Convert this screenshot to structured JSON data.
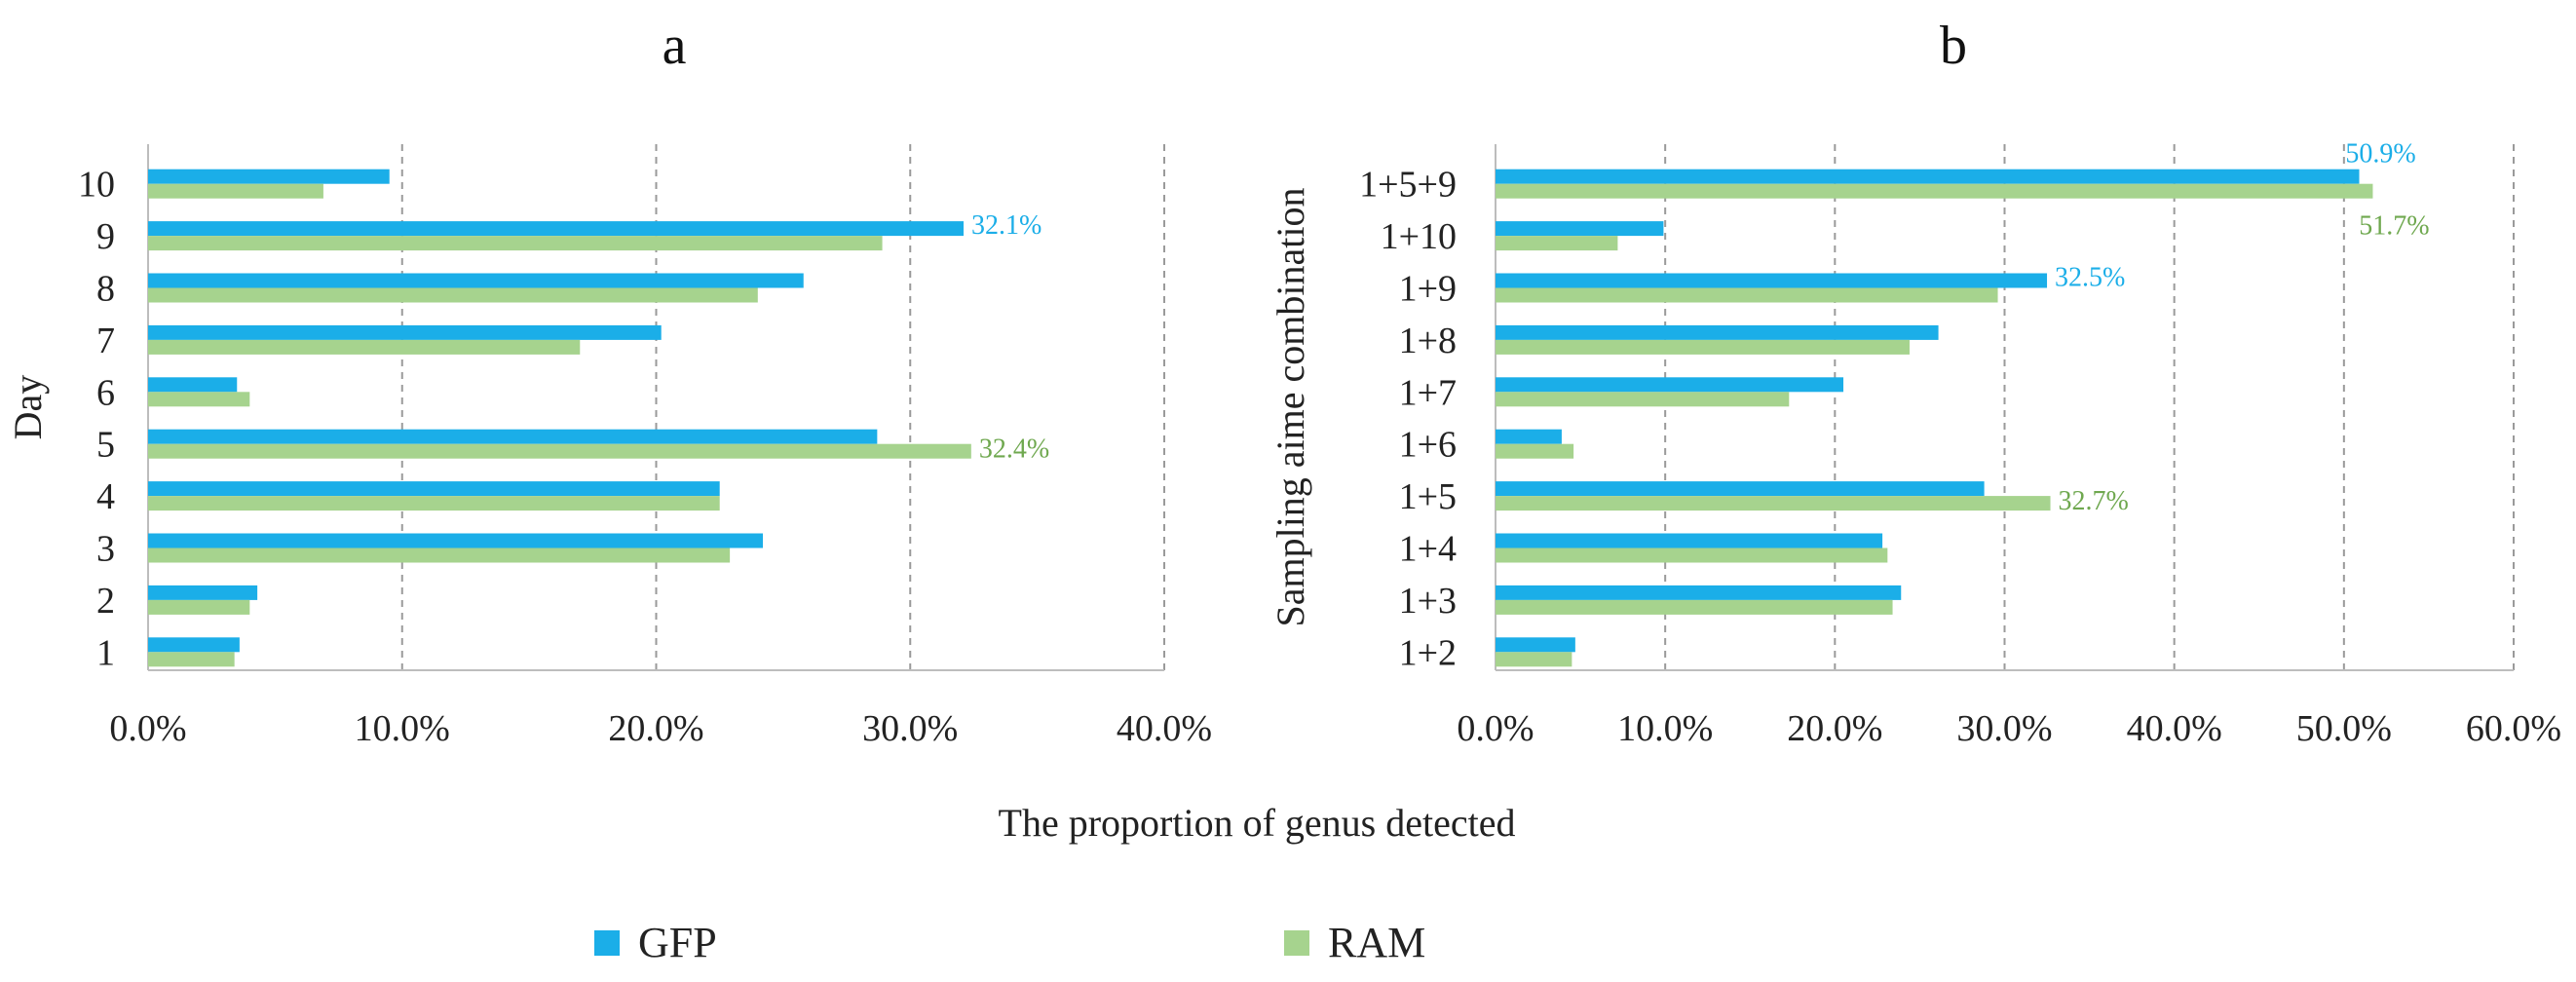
{
  "xlabel": "The proportion of genus detected",
  "colors": {
    "GFP": "#1BAEE8",
    "RAM": "#A6D38E",
    "grid": "#9a9a9a",
    "axis": "#bdbdbd"
  },
  "legend": {
    "items": [
      "GFP",
      "RAM"
    ]
  },
  "chart_data": [
    {
      "type": "bar",
      "orientation": "horizontal",
      "title": "a",
      "ylabel": "Day",
      "xlabel": "The proportion of genus detected",
      "xlim": [
        0,
        40
      ],
      "xticks": [
        "0.0%",
        "10.0%",
        "20.0%",
        "30.0%",
        "40.0%"
      ],
      "categories": [
        "1",
        "2",
        "3",
        "4",
        "5",
        "6",
        "7",
        "8",
        "9",
        "10"
      ],
      "series": [
        {
          "name": "GFP",
          "values": [
            3.6,
            4.3,
            24.2,
            22.5,
            28.7,
            3.5,
            20.2,
            25.8,
            32.1,
            9.5
          ]
        },
        {
          "name": "RAM",
          "values": [
            3.4,
            4.0,
            22.9,
            22.5,
            32.4,
            4.0,
            17.0,
            24.0,
            28.9,
            6.9
          ]
        }
      ],
      "annotations": [
        {
          "series": "GFP",
          "category": "9",
          "text": "32.1%"
        },
        {
          "series": "RAM",
          "category": "5",
          "text": "32.4%"
        }
      ]
    },
    {
      "type": "bar",
      "orientation": "horizontal",
      "title": "b",
      "ylabel": "Sampling aime combination",
      "xlabel": "The proportion of genus detected",
      "xlim": [
        0,
        60
      ],
      "xticks": [
        "0.0%",
        "10.0%",
        "20.0%",
        "30.0%",
        "40.0%",
        "50.0%",
        "60.0%"
      ],
      "categories": [
        "1+2",
        "1+3",
        "1+4",
        "1+5",
        "1+6",
        "1+7",
        "1+8",
        "1+9",
        "1+10",
        "1+5+9"
      ],
      "series": [
        {
          "name": "GFP",
          "values": [
            4.7,
            23.9,
            22.8,
            28.8,
            3.9,
            20.5,
            26.1,
            32.5,
            9.9,
            50.9
          ]
        },
        {
          "name": "RAM",
          "values": [
            4.5,
            23.4,
            23.1,
            32.7,
            4.6,
            17.3,
            24.4,
            29.6,
            7.2,
            51.7
          ]
        }
      ],
      "annotations": [
        {
          "series": "GFP",
          "category": "1+5+9",
          "text": "50.9%"
        },
        {
          "series": "RAM",
          "category": "1+5+9",
          "text": "51.7%"
        },
        {
          "series": "GFP",
          "category": "1+9",
          "text": "32.5%"
        },
        {
          "series": "RAM",
          "category": "1+5",
          "text": "32.7%"
        }
      ]
    }
  ]
}
